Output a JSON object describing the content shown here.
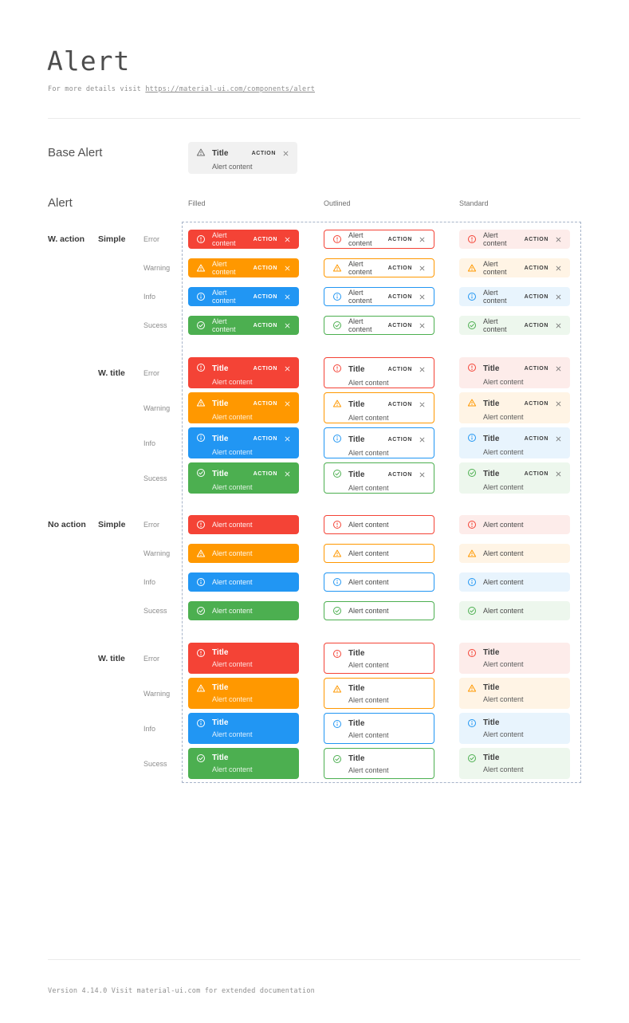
{
  "page": {
    "title": "Alert",
    "subtitle_prefix": "For more details visit ",
    "subtitle_link": "https://material-ui.com/components/alert",
    "footer": "Version 4.14.0  Visit material-ui.com for extended documentation"
  },
  "base_section": {
    "label": "Base Alert",
    "alert": {
      "title": "Title",
      "content": "Alert content",
      "action_label": "ACTION"
    },
    "bg_color": "#f1f1f1",
    "icon": "warning-icon",
    "icon_color": "#6e6e6e"
  },
  "grid_section": {
    "label": "Alert",
    "columns": [
      "Filled",
      "Outlined",
      "Standard"
    ],
    "variants": [
      "filled",
      "outlined",
      "standard"
    ],
    "groups": [
      {
        "label": "W. action",
        "with_action": true
      },
      {
        "label": "No action",
        "with_action": false
      }
    ],
    "subgroups": [
      {
        "label": "Simple",
        "with_title": false
      },
      {
        "label": "W. title",
        "with_title": true
      }
    ],
    "severities": [
      {
        "label": "Error",
        "key": "error",
        "icon": "error-icon",
        "main": "#f44336",
        "tint": "#fdecea"
      },
      {
        "label": "Warning",
        "key": "warning",
        "icon": "warning-icon",
        "main": "#ff9800",
        "tint": "#fff4e5"
      },
      {
        "label": "Info",
        "key": "info",
        "icon": "info-icon",
        "main": "#2196f3",
        "tint": "#e8f4fd"
      },
      {
        "label": "Sucess",
        "key": "success",
        "icon": "success-icon",
        "main": "#4caf50",
        "tint": "#edf7ed"
      }
    ],
    "alert_text": {
      "title": "Title",
      "content": "Alert content",
      "action_label": "ACTION"
    },
    "dashed_border_color": "#a7b4c9"
  }
}
